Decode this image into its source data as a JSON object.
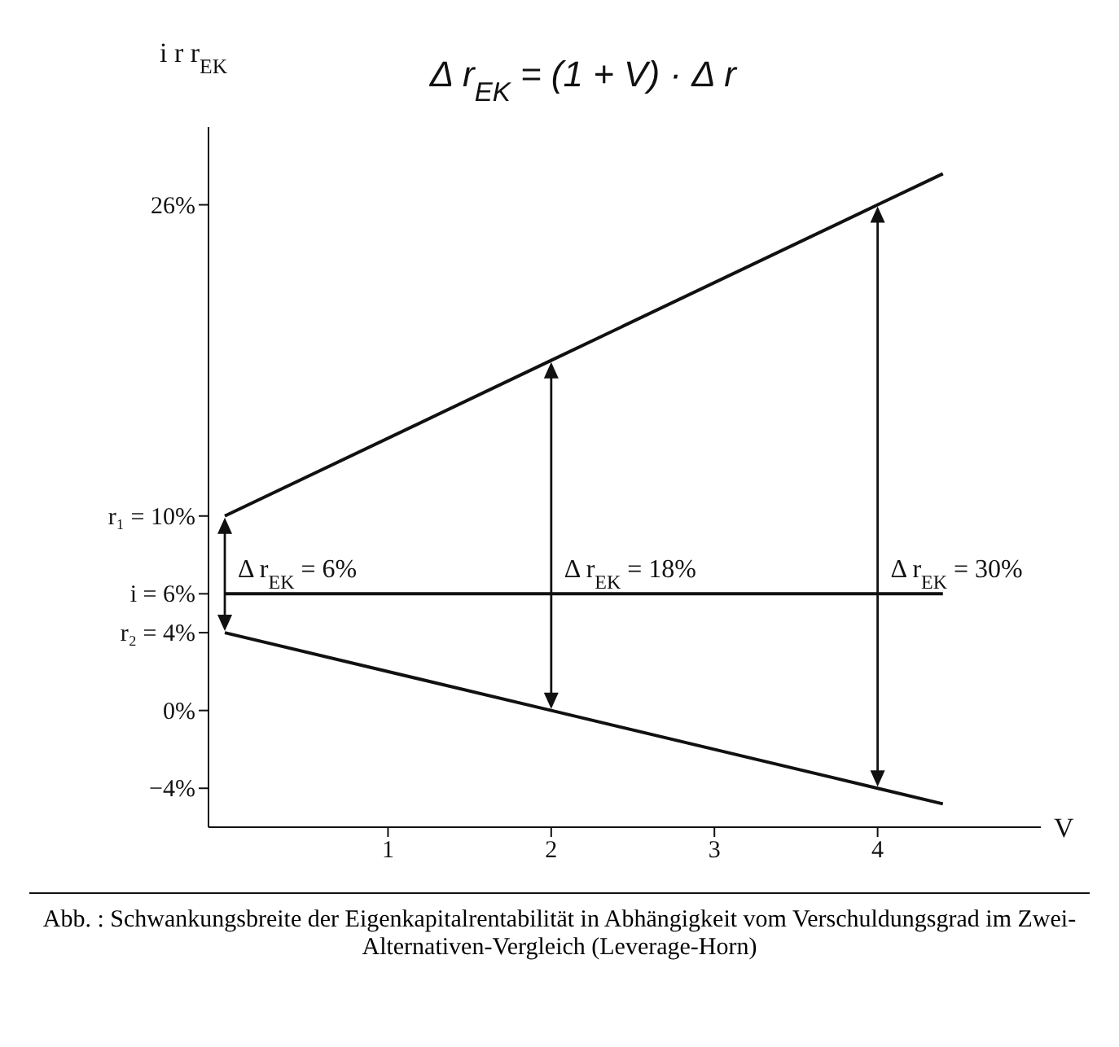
{
  "chart_data": {
    "type": "line",
    "ylabel": "i  r  r$_{EK}$",
    "xlabel": "V",
    "x": [
      0,
      2,
      4,
      4.4
    ],
    "series": [
      {
        "color": "#111111",
        "values": [
          10,
          18,
          26,
          27.6
        ]
      },
      {
        "color": "#111111",
        "x": [
          0,
          4.4
        ],
        "values": [
          6,
          6
        ]
      },
      {
        "color": "#111111",
        "values": [
          4,
          0,
          -4,
          -4.8
        ]
      }
    ],
    "xlim": [
      -0.1,
      5
    ],
    "xticks": [
      1,
      2,
      3,
      4
    ],
    "ylim": [
      -6,
      30
    ],
    "yticks": [
      {
        "value": -4,
        "label": "−4%"
      },
      {
        "value": 0,
        "label": "0%"
      },
      {
        "value": 4,
        "label": "r₂ = 4%"
      },
      {
        "value": 6,
        "label": "i = 6%"
      },
      {
        "value": 10,
        "label": "r₁ = 10%"
      },
      {
        "value": 26,
        "label": "26%"
      }
    ],
    "grid": false,
    "legend": false,
    "marker": "none",
    "line_style": "solid",
    "annotations": [
      "Δ r$_{EK}$ = (1 + V) · Δ r",
      {
        "text": "Δ r$_{EK}$ = 6%",
        "x": 0,
        "y": 6
      },
      {
        "text": "Δ r$_{EK}$ = 18%",
        "x": 2,
        "y": 6
      },
      {
        "text": "Δ r$_{EK}$ = 30%",
        "x": 4,
        "y": 6
      },
      "Abb. : Schwankungsbreite der Eigenkapitalrentabilität in Abhängigkeit vom Verschuldungsgrad im Zwei-Alternativen-Vergleich (Leverage-Horn)"
    ]
  }
}
